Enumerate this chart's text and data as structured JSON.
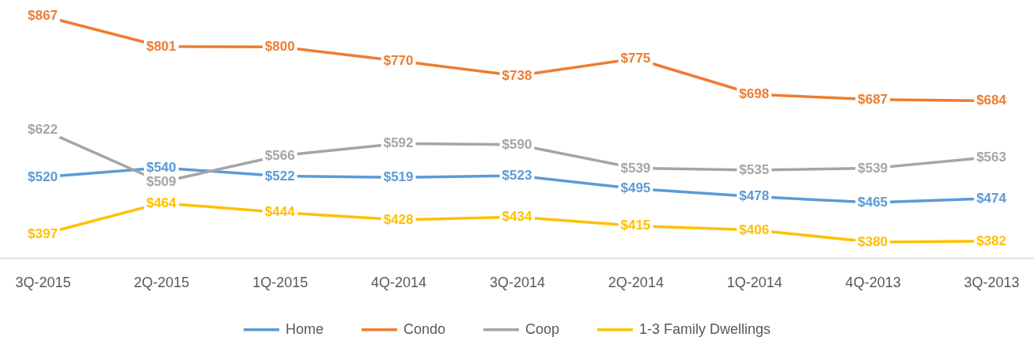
{
  "chart_data": {
    "type": "line",
    "categories": [
      "3Q-2015",
      "2Q-2015",
      "1Q-2015",
      "4Q-2014",
      "3Q-2014",
      "2Q-2014",
      "1Q-2014",
      "4Q-2013",
      "3Q-2013"
    ],
    "series": [
      {
        "name": "Home",
        "color": "#5b9bd5",
        "values": [
          520,
          540,
          522,
          519,
          523,
          495,
          478,
          465,
          474
        ],
        "value_labels": [
          "$520",
          "$540",
          "$522",
          "$519",
          "$523",
          "$495",
          "$478",
          "$465",
          "$474"
        ]
      },
      {
        "name": "Condo",
        "color": "#ed7d31",
        "values": [
          867,
          801,
          800,
          770,
          738,
          775,
          698,
          687,
          684
        ],
        "value_labels": [
          "$867",
          "$801",
          "$800",
          "$770",
          "$738",
          "$775",
          "$698",
          "$687",
          "$684"
        ]
      },
      {
        "name": "Coop",
        "color": "#a5a5a5",
        "values": [
          622,
          509,
          566,
          592,
          590,
          539,
          535,
          539,
          563
        ],
        "value_labels": [
          "$622",
          "$509",
          "$566",
          "$592",
          "$590",
          "$539",
          "$535",
          "$539",
          "$563"
        ]
      },
      {
        "name": "1-3 Family Dwellings",
        "color": "#ffc000",
        "values": [
          397,
          464,
          444,
          428,
          434,
          415,
          406,
          380,
          382
        ],
        "value_labels": [
          "$397",
          "$464",
          "$444",
          "$428",
          "$434",
          "$415",
          "$406",
          "$380",
          "$382"
        ]
      }
    ],
    "legend": "bottom",
    "line_style": "solid"
  }
}
